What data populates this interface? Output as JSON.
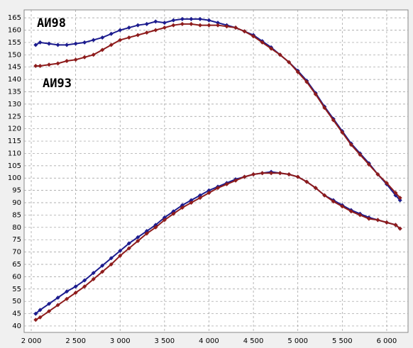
{
  "chart_data": {
    "type": "line",
    "annotations": [
      "АИ98",
      "АИ93"
    ],
    "x": [
      2050,
      2100,
      2200,
      2300,
      2400,
      2500,
      2600,
      2700,
      2800,
      2900,
      3000,
      3100,
      3200,
      3300,
      3400,
      3500,
      3600,
      3700,
      3800,
      3900,
      4000,
      4100,
      4200,
      4300,
      4400,
      4500,
      4600,
      4700,
      4800,
      4900,
      5000,
      5100,
      5200,
      5300,
      5400,
      5500,
      5600,
      5700,
      5800,
      5900,
      6000,
      6100,
      6150
    ],
    "series": [
      {
        "color": "#1c1c8e",
        "values": [
          154,
          155,
          154.5,
          154,
          154,
          154.5,
          155,
          156,
          157,
          158.5,
          160,
          161,
          162,
          162.5,
          163.5,
          163,
          164,
          164.5,
          164.5,
          164.5,
          164,
          163,
          162,
          161,
          159.5,
          158,
          155.5,
          153,
          150,
          147,
          143.5,
          139.5,
          134.5,
          129,
          124,
          119,
          114,
          110,
          106,
          101.5,
          97.5,
          93,
          91
        ]
      },
      {
        "color": "#8e1c1c",
        "values": [
          145.5,
          145.5,
          146,
          146.5,
          147.5,
          148,
          149,
          150,
          152,
          154,
          156,
          157,
          158,
          159,
          160,
          161,
          162,
          162.5,
          162.5,
          162,
          162,
          162,
          161.5,
          161,
          159.5,
          157.5,
          155,
          152.5,
          150,
          147,
          143,
          139,
          134,
          128.5,
          123.5,
          118.5,
          113.5,
          109.5,
          105.5,
          101.5,
          98,
          94,
          92
        ]
      },
      {
        "color": "#1c1c8e",
        "values": [
          45,
          46.5,
          49,
          51.5,
          54,
          56,
          58.5,
          61.5,
          64.5,
          67.5,
          70.5,
          73.5,
          76,
          78.5,
          81,
          84,
          86.5,
          89,
          91,
          93,
          95,
          96.5,
          98,
          99.5,
          100.5,
          101.5,
          102,
          102.5,
          102,
          101.5,
          100.5,
          98.5,
          96,
          93,
          91,
          89,
          87,
          85.5,
          84,
          83,
          82,
          81,
          79.5
        ]
      },
      {
        "color": "#8e1c1c",
        "values": [
          42.5,
          43.5,
          46,
          48.5,
          51,
          53.5,
          56,
          59,
          62,
          65,
          68.5,
          71.5,
          74.5,
          77.5,
          80,
          83,
          85.5,
          88,
          90,
          92,
          94,
          96,
          97.5,
          99,
          100.5,
          101.5,
          102,
          102,
          102,
          101.5,
          100.5,
          98.5,
          96,
          93,
          90.5,
          88.5,
          86.5,
          85,
          83.5,
          83,
          82,
          81,
          79.5
        ]
      }
    ],
    "xlim": [
      1920,
      6240
    ],
    "ylim": [
      37.4,
      168.2
    ],
    "xticks": [
      {
        "value": 2000,
        "label": "2 000"
      },
      {
        "value": 2500,
        "label": "2 500"
      },
      {
        "value": 3000,
        "label": "3 000"
      },
      {
        "value": 3500,
        "label": "3 500"
      },
      {
        "value": 4000,
        "label": "4 000"
      },
      {
        "value": 4500,
        "label": "4 500"
      },
      {
        "value": 5000,
        "label": "5 000"
      },
      {
        "value": 5500,
        "label": "5 500"
      },
      {
        "value": 6000,
        "label": "6 000"
      }
    ],
    "yticks": [
      40,
      45,
      50,
      55,
      60,
      65,
      70,
      75,
      80,
      85,
      90,
      95,
      100,
      105,
      110,
      115,
      120,
      125,
      130,
      135,
      140,
      145,
      150,
      155,
      160,
      165
    ],
    "grid": true
  }
}
